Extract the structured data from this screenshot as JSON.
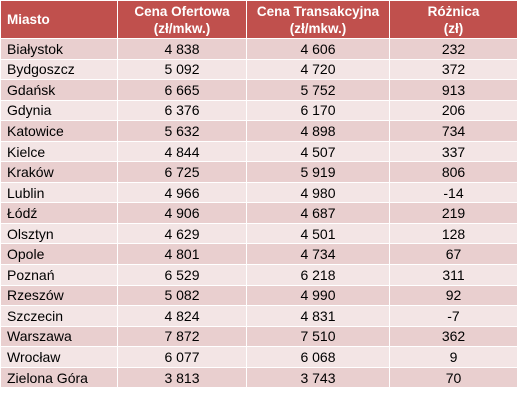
{
  "table": {
    "headers": {
      "city": "Miasto",
      "offer_line1": "Cena Ofertowa",
      "offer_line2": "(zł/mkw.)",
      "transaction_line1": "Cena Transakcyjna",
      "transaction_line2": "(zł/mkw.)",
      "difference_line1": "Różnica",
      "difference_line2": "(zł)"
    },
    "rows": [
      {
        "city": "Białystok",
        "offer": "4 838",
        "transaction": "4 606",
        "difference": "232"
      },
      {
        "city": "Bydgoszcz",
        "offer": "5 092",
        "transaction": "4 720",
        "difference": "372"
      },
      {
        "city": "Gdańsk",
        "offer": "6 665",
        "transaction": "5 752",
        "difference": "913"
      },
      {
        "city": "Gdynia",
        "offer": "6 376",
        "transaction": "6 170",
        "difference": "206"
      },
      {
        "city": "Katowice",
        "offer": "5 632",
        "transaction": "4 898",
        "difference": "734"
      },
      {
        "city": "Kielce",
        "offer": "4 844",
        "transaction": "4 507",
        "difference": "337"
      },
      {
        "city": "Kraków",
        "offer": "6 725",
        "transaction": "5 919",
        "difference": "806"
      },
      {
        "city": "Lublin",
        "offer": "4 966",
        "transaction": "4 980",
        "difference": "-14"
      },
      {
        "city": "Łódź",
        "offer": "4 906",
        "transaction": "4 687",
        "difference": "219"
      },
      {
        "city": "Olsztyn",
        "offer": "4 629",
        "transaction": "4 501",
        "difference": "128"
      },
      {
        "city": "Opole",
        "offer": "4 801",
        "transaction": "4 734",
        "difference": "67"
      },
      {
        "city": "Poznań",
        "offer": "6 529",
        "transaction": "6 218",
        "difference": "311"
      },
      {
        "city": "Rzeszów",
        "offer": "5 082",
        "transaction": "4 990",
        "difference": "92"
      },
      {
        "city": "Szczecin",
        "offer": "4 824",
        "transaction": "4 831",
        "difference": "-7"
      },
      {
        "city": "Warszawa",
        "offer": "7 872",
        "transaction": "7 510",
        "difference": "362"
      },
      {
        "city": "Wrocław",
        "offer": "6 077",
        "transaction": "6 068",
        "difference": "9"
      },
      {
        "city": "Zielona Góra",
        "offer": "3 813",
        "transaction": "3 743",
        "difference": "70"
      }
    ]
  },
  "colors": {
    "header_bg": "#c0504d",
    "header_text": "#ffffff",
    "row_odd_bg": "#e9cfcf",
    "row_even_bg": "#f3e5e5",
    "grid_line": "#ffffff"
  }
}
